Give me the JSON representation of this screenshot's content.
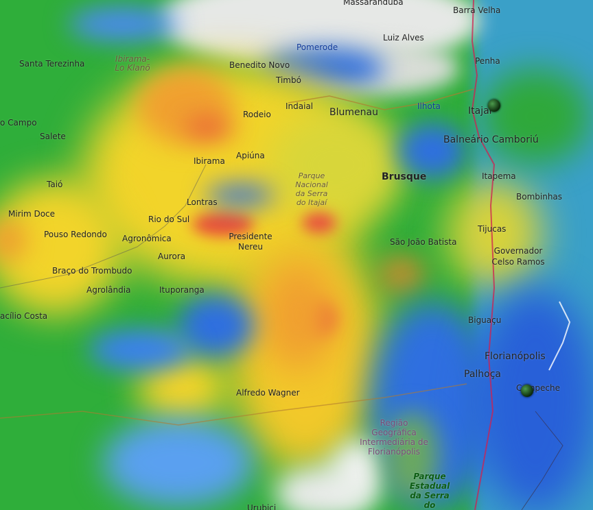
{
  "places": {
    "massaranduba": "Massaranduba",
    "barra_velha": "Barra Velha",
    "luiz_alves": "Luiz Alves",
    "pomerode": "Pomerode",
    "penha": "Penha",
    "santa_terezinha": "Santa Terezinha",
    "ibirama_lo_klano": "Ibirama-Lo Klanõ",
    "benedito_novo": "Benedito Novo",
    "timbo": "Timbó",
    "indaial": "Indaial",
    "blumenau": "Blumenau",
    "ilhota": "Ilhota",
    "itajai": "Itajaí",
    "rodeio": "Rodeio",
    "campo": "o Campo",
    "salete": "Salete",
    "balneario_camboriu": "Balneário Camboriú",
    "ibirama": "Ibirama",
    "apiuna": "Apiúna",
    "parque_nacional": "Parque Nacional da Serra do Itajaí",
    "brusque": "Brusque",
    "itapema": "Itapema",
    "taio": "Taió",
    "bombinhas": "Bombinhas",
    "lontras": "Lontras",
    "mirim_doce": "Mirim Doce",
    "rio_do_sul": "Rio do Sul",
    "tijucas": "Tijucas",
    "pouso_redondo": "Pouso Redondo",
    "agronomica": "Agronômica",
    "presidente_nereu": "Presidente Nereu",
    "sao_joao_batista": "São João Batista",
    "governador_celso_ramos": "Governador Celso Ramos",
    "aurora": "Aurora",
    "braco_do_trombudo": "Braço do Trombudo",
    "agrolandia": "Agrolândia",
    "ituporanga": "Ituporanga",
    "vidal_costa": "acílio Costa",
    "biguacu": "Biguaçu",
    "florianopolis": "Florianópolis",
    "palhoca": "Palhoça",
    "campeche": "Campeche",
    "alfredo_wagner": "Alfredo Wagner",
    "regiao": "Região Geográfica Intermediária de Florianópolis",
    "parque_estadual": "Parque Estadual da Serra do Tabuleiro",
    "urubici": "Urubici"
  },
  "radar_colors": {
    "light": "#2fae3a",
    "moderate": "#f2d42a",
    "heavy": "#f0a030",
    "intense": "#e8503a",
    "drizzle": "#2f6fe0",
    "ocean": "#3aa0c8"
  },
  "markers": [
    {
      "name": "Itajaí station"
    },
    {
      "name": "Campeche station"
    }
  ]
}
